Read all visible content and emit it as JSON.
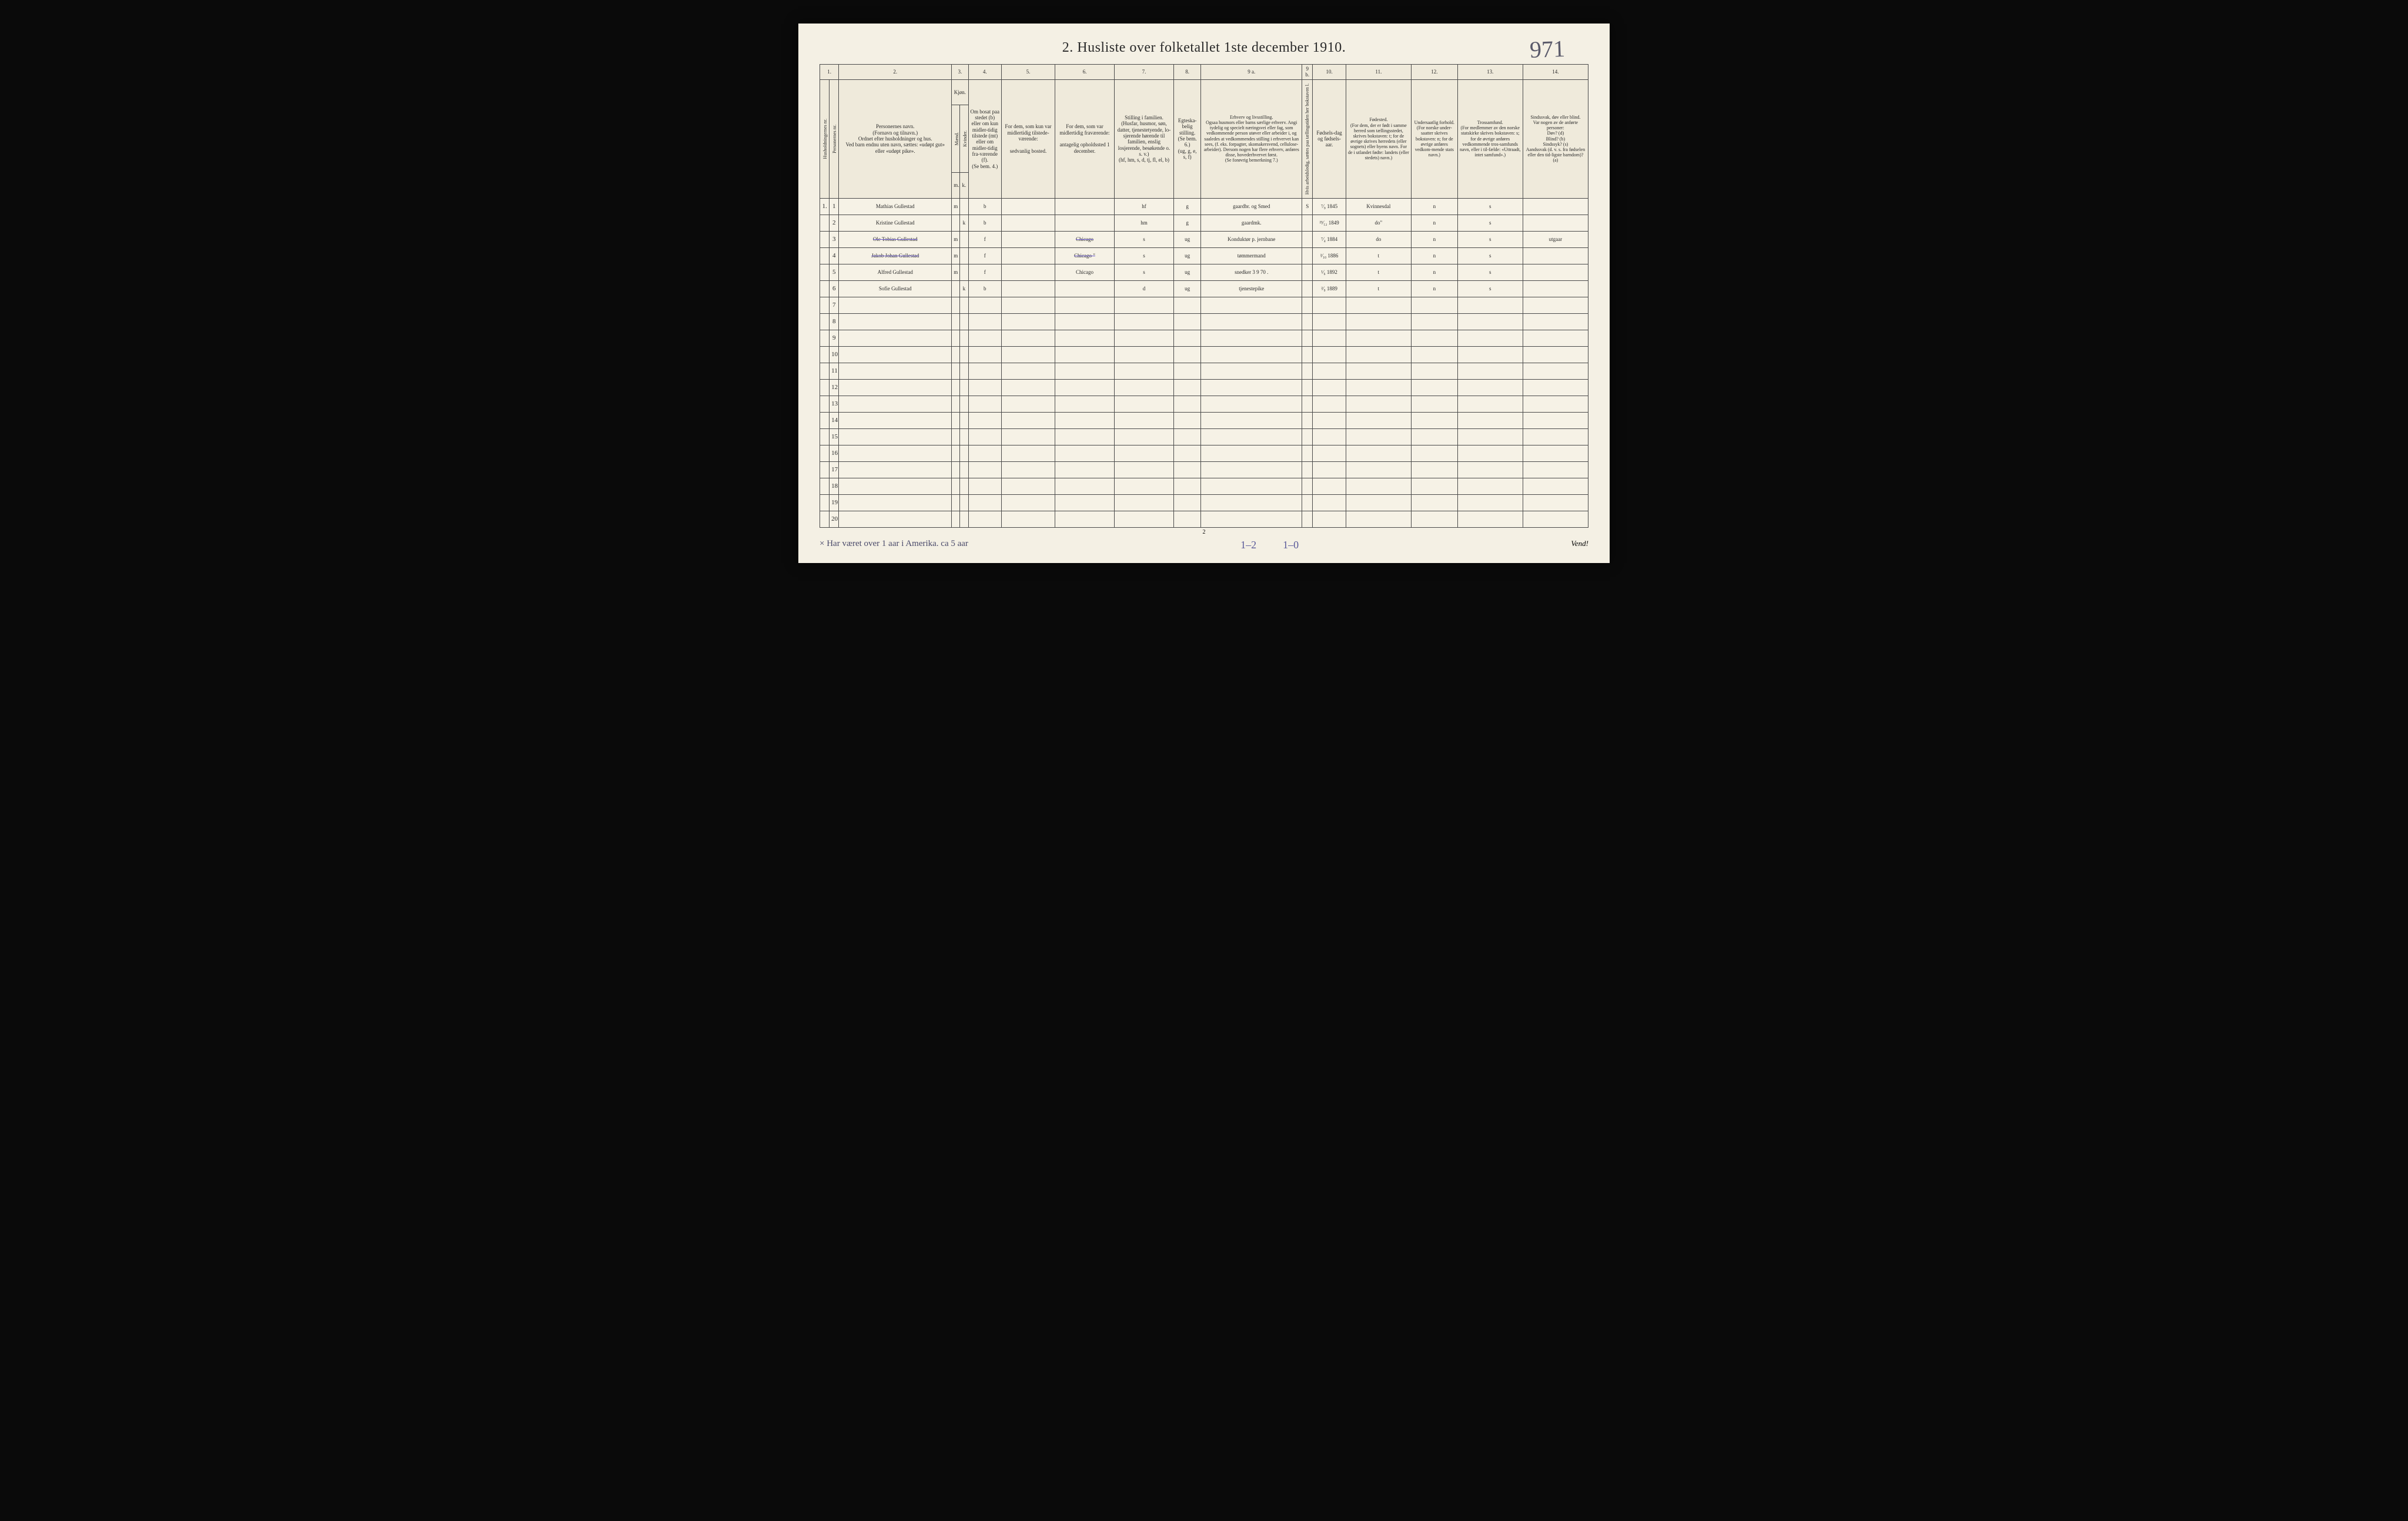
{
  "title": "2.  Husliste over folketallet 1ste december 1910.",
  "handwritten_page_number": "971",
  "printed_page_number": "2",
  "footer_note": "× Har været over 1 aar i Amerika. ca 5 aar",
  "totals": {
    "col4": "1–2",
    "col6": "1–0"
  },
  "vend": "Vend!",
  "colnums": [
    "1.",
    "2.",
    "3.",
    "4.",
    "5.",
    "6.",
    "7.",
    "8.",
    "9 a.",
    "9 b.",
    "10.",
    "11.",
    "12.",
    "13.",
    "14."
  ],
  "headers": {
    "h1a": "Husholdningernes nr.",
    "h1b": "Personernes nr.",
    "h2": "Personernes navn.\n(Fornavn og tilnavn.)\nOrdnet efter husholdninger og hus.\nVed barn endnu uten navn, sættes: «udøpt gut» eller «udøpt pike».",
    "h3": "Kjøn.",
    "h3a": "Mænd.",
    "h3b": "Kvinder.",
    "h3m": "m.",
    "h3k": "k.",
    "h4": "Om bosat paa stedet (b) eller om kun midler-tidig tilstede (mt) eller om midler-tidig fra-værende (f).\n(Se bem. 4.)",
    "h5": "For dem, som kun var midlertidig tilstede-værende:\n\nsedvanlig bosted.",
    "h6": "For dem, som var midlertidig fraværende:\n\nantagelig opholdssted 1 december.",
    "h7": "Stilling i familien.\n(Husfar, husmor, søn, datter, tjenestetyende, lo-sjerende hørende til familien, enslig losjerende, besøkende o. s. v.)\n(hf, hm, s, d, tj, fl, el, b)",
    "h8": "Egteska-belig stilling.\n(Se bem. 6.)\n(ug, g, e, s, f)",
    "h9a": "Erhverv og livsstilling.\nOgsaa husmors eller barns særlige erhverv. Angi tydelig og specielt næringsvei eller fag, som vedkommende person utøver eller arbeider i, og saaledes at vedkommendes stilling i erhvervet kan sees, (f. eks. forpagter, skomakersvend, cellulose-arbeider). Dersom nogen har flere erhverv, anføres disse, hovederhvervet først.\n(Se forøvrig bemerkning 7.)",
    "h9b": "Hvis arbeidsledig, sættes paa tællingstiden her bokstaven l.",
    "h10": "Fødsels-dag og fødsels-aar.",
    "h11": "Fødested.\n(For dem, der er født i samme herred som tællingsstedet, skrives bokstaven: t; for de øvrige skrives herredets (eller sognets) eller byens navn. For de i utlandet fødte: landets (eller stedets) navn.)",
    "h12": "Undersaatlig forhold.\n(For norske under-saatter skrives bokstaven: n; for de øvrige anføres vedkom-mende stats navn.)",
    "h13": "Trossamfund.\n(For medlemmer av den norske statskirke skrives bokstaven: s; for de øvrige anføres vedkommende tros-samfunds navn, eller i til-fælde: «Uttraadt, intet samfund».)",
    "h14": "Sindssvak, døv eller blind.\nVar nogen av de anførte personer:\nDøv? (d)\nBlind? (b)\nSindssyk? (s)\nAandssvak (d. v. s. fra fødselen eller den tid-ligste barndom)? (a)"
  },
  "rows": [
    {
      "num": "1",
      "hnr": "1.",
      "name": "Mathias Gullestad",
      "sex_m": "m",
      "sex_k": "",
      "res": "b",
      "c5": "",
      "c6": "",
      "c7": "hf",
      "c8": "g",
      "c9a": "gaardbr. og Smed",
      "c9b": "S",
      "c10": "⁷⁄₉ 1845",
      "c11": "Kvinnesdal",
      "c12": "n",
      "c13": "s",
      "c14": "",
      "struck": false
    },
    {
      "num": "2",
      "hnr": "",
      "name": "Kristine Gullestad",
      "sex_m": "",
      "sex_k": "k",
      "res": "b",
      "c5": "",
      "c6": "",
      "c7": "hm",
      "c8": "g",
      "c9a": "gaardmk.",
      "c9b": "",
      "c10": "²³⁄₁₂ 1849",
      "c11": "do\"",
      "c12": "n",
      "c13": "s",
      "c14": "",
      "struck": false
    },
    {
      "num": "3",
      "hnr": "",
      "name": "Ole Tobias Gullestad",
      "sex_m": "m",
      "sex_k": "",
      "res": "f",
      "c5": "",
      "c6": "Chicago",
      "c7": "s",
      "c8": "ug",
      "c9a": "Konduktør p. jernbane",
      "c9b": "",
      "c10": "⁷⁄₄ 1884",
      "c11": "do",
      "c12": "n",
      "c13": "s",
      "c14": "utgaar",
      "struck": true
    },
    {
      "num": "4",
      "hnr": "",
      "name": "Jakob Johan Gullestad",
      "sex_m": "m",
      "sex_k": "",
      "res": "f",
      "c5": "",
      "c6": "Chicago \"",
      "c7": "s",
      "c8": "ug",
      "c9a": "tømmermand",
      "c9b": "",
      "c10": "²⁄₁₀ 1886",
      "c11": "t",
      "c12": "n",
      "c13": "s",
      "c14": "",
      "struck": true
    },
    {
      "num": "5",
      "hnr": "",
      "name": "Alfred Gullestad",
      "sex_m": "m",
      "sex_k": "",
      "res": "f",
      "c5": "",
      "c6": "Chicago",
      "c7": "s",
      "c8": "ug",
      "c9a": "snedker 3 9 70 .",
      "c9b": "",
      "c10": "¹⁄₆ 1892",
      "c11": "t",
      "c12": "n",
      "c13": "s",
      "c14": "",
      "struck": false
    },
    {
      "num": "6",
      "hnr": "",
      "name": "Sofie Gullestad",
      "sex_m": "",
      "sex_k": "k",
      "res": "b",
      "c5": "",
      "c6": "",
      "c7": "d",
      "c8": "ug",
      "c9a": "tjenestepike",
      "c9b": "",
      "c10": "²⁄₉ 1889",
      "c11": "t",
      "c12": "n",
      "c13": "s",
      "c14": "",
      "struck": false
    }
  ],
  "empty_rows": [
    7,
    8,
    9,
    10,
    11,
    12,
    13,
    14,
    15,
    16,
    17,
    18,
    19,
    20
  ],
  "colwidths": {
    "c1a": 16,
    "c1b": 16,
    "c2": 190,
    "c3a": 14,
    "c3b": 14,
    "c4": 56,
    "c5": 90,
    "c6": 100,
    "c7": 100,
    "c8": 46,
    "c9a": 170,
    "c9b": 18,
    "c10": 56,
    "c11": 110,
    "c12": 78,
    "c13": 110,
    "c14": 110
  },
  "colors": {
    "page_bg": "#f4f0e4",
    "border": "#4a4a4a",
    "ink_hand": "#2b2b55",
    "ink_hand_alt": "#6a5acd"
  }
}
